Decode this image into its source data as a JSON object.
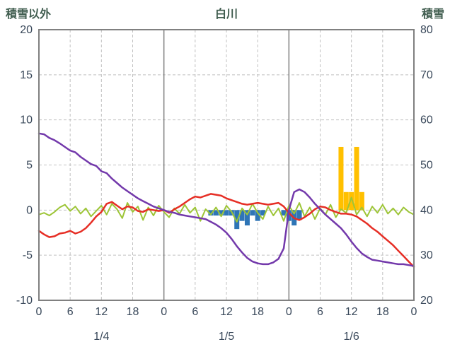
{
  "header": {
    "left_axis_title": "積雪以外",
    "chart_title": "白川",
    "right_axis_title": "積雪"
  },
  "colors": {
    "background": "#ffffff",
    "header_text": "#3f5c4e",
    "tick_text": "#39485a",
    "grid": "#c0c0c0",
    "axis_border": "#808080",
    "day_boundary": "#808080",
    "red_line": "#e62e25",
    "purple_line": "#7339ab",
    "green_line": "#9dc537",
    "blue_bars": "#2e75b6",
    "yellow_bars": "#ffc000"
  },
  "chart_data": {
    "type": "line",
    "title": "白川",
    "x_max": 72,
    "left_axis": {
      "label": "積雪以外",
      "min": -10,
      "max": 20,
      "ticks": [
        [
          20,
          "20"
        ],
        [
          15,
          "15"
        ],
        [
          10,
          "10"
        ],
        [
          5,
          "5"
        ],
        [
          0,
          "0"
        ],
        [
          -5,
          "-5"
        ],
        [
          -10,
          "-10"
        ]
      ]
    },
    "right_axis": {
      "label": "積雪",
      "min": 20,
      "max": 80,
      "ticks": [
        [
          80,
          "80"
        ],
        [
          70,
          "70"
        ],
        [
          60,
          "60"
        ],
        [
          50,
          "50"
        ],
        [
          40,
          "40"
        ],
        [
          30,
          "30"
        ],
        [
          20,
          "20"
        ]
      ]
    },
    "x_axis": {
      "ticks": [
        [
          0,
          "0"
        ],
        [
          6,
          "6"
        ],
        [
          12,
          "12"
        ],
        [
          18,
          "18"
        ],
        [
          24,
          "0"
        ],
        [
          30,
          "6"
        ],
        [
          36,
          "12"
        ],
        [
          42,
          "18"
        ],
        [
          48,
          "0"
        ],
        [
          54,
          "6"
        ],
        [
          60,
          "12"
        ],
        [
          66,
          "18"
        ],
        [
          72,
          "0"
        ]
      ],
      "day_labels": [
        [
          12,
          "1/4"
        ],
        [
          36,
          "1/5"
        ],
        [
          60,
          "1/6"
        ]
      ],
      "day_boundaries": [
        24,
        48
      ],
      "grid_interval_hours": 6
    },
    "series": [
      {
        "name": "blue-bars",
        "type": "bar",
        "axis": "left",
        "color_key": "blue_bars",
        "points": [
          [
            33,
            -0.6
          ],
          [
            34,
            -0.6
          ],
          [
            35,
            -0.6
          ],
          [
            36,
            -0.6
          ],
          [
            37,
            -0.6
          ],
          [
            38,
            -2.1
          ],
          [
            39,
            -1.2
          ],
          [
            40,
            -1.7
          ],
          [
            41,
            -0.6
          ],
          [
            42,
            -1.2
          ],
          [
            43,
            -0.6
          ],
          [
            47,
            -0.6
          ],
          [
            48,
            -1.2
          ],
          [
            49,
            -1.7
          ],
          [
            50,
            -1.1
          ]
        ]
      },
      {
        "name": "yellow-bars",
        "type": "bar",
        "axis": "left",
        "color_key": "yellow_bars",
        "points": [
          [
            58,
            7
          ],
          [
            59,
            2
          ],
          [
            60,
            2
          ],
          [
            61,
            7
          ],
          [
            62,
            2
          ]
        ]
      },
      {
        "name": "green-line",
        "type": "line",
        "axis": "left",
        "color_key": "green_line",
        "width": 2,
        "points": [
          [
            0,
            -0.5
          ],
          [
            1,
            -0.3
          ],
          [
            2,
            -0.6
          ],
          [
            3,
            -0.2
          ],
          [
            4,
            0.3
          ],
          [
            5,
            0.6
          ],
          [
            6,
            -0.1
          ],
          [
            7,
            0.4
          ],
          [
            8,
            -0.4
          ],
          [
            9,
            0.2
          ],
          [
            10,
            -0.7
          ],
          [
            11,
            -0.1
          ],
          [
            12,
            0.5
          ],
          [
            13,
            -0.5
          ],
          [
            14,
            0.7
          ],
          [
            15,
            0.1
          ],
          [
            16,
            -0.9
          ],
          [
            17,
            0.8
          ],
          [
            18,
            -0.2
          ],
          [
            19,
            0.4
          ],
          [
            20,
            -1.1
          ],
          [
            21,
            0.3
          ],
          [
            22,
            -0.6
          ],
          [
            23,
            0.5
          ],
          [
            24,
            -0.2
          ],
          [
            25,
            -0.8
          ],
          [
            26,
            0.2
          ],
          [
            27,
            -0.4
          ],
          [
            28,
            0.6
          ],
          [
            29,
            -0.3
          ],
          [
            30,
            0.3
          ],
          [
            31,
            -1.2
          ],
          [
            32,
            0.1
          ],
          [
            33,
            -0.5
          ],
          [
            34,
            0.3
          ],
          [
            35,
            -0.7
          ],
          [
            36,
            0.5
          ],
          [
            37,
            -0.2
          ],
          [
            38,
            -1.3
          ],
          [
            39,
            0.2
          ],
          [
            40,
            -0.5
          ],
          [
            41,
            0.7
          ],
          [
            42,
            -0.3
          ],
          [
            43,
            -1.0
          ],
          [
            44,
            0.4
          ],
          [
            45,
            -0.6
          ],
          [
            46,
            0.2
          ],
          [
            47,
            -1.2
          ],
          [
            48,
            0.5
          ],
          [
            49,
            -0.4
          ],
          [
            50,
            0.8
          ],
          [
            51,
            -0.7
          ],
          [
            52,
            0.3
          ],
          [
            53,
            -1.0
          ],
          [
            54,
            0.2
          ],
          [
            55,
            -0.5
          ],
          [
            56,
            0.6
          ],
          [
            57,
            -0.8
          ],
          [
            58,
            0.1
          ],
          [
            59,
            -0.3
          ],
          [
            60,
            1.4
          ],
          [
            61,
            -0.5
          ],
          [
            62,
            0.3
          ],
          [
            63,
            -0.7
          ],
          [
            64,
            0.4
          ],
          [
            65,
            -0.3
          ],
          [
            66,
            0.6
          ],
          [
            67,
            -0.4
          ],
          [
            68,
            0.2
          ],
          [
            69,
            -0.5
          ],
          [
            70,
            0.3
          ],
          [
            71,
            -0.2
          ],
          [
            72,
            -0.5
          ]
        ]
      },
      {
        "name": "red-line",
        "type": "line",
        "axis": "left",
        "color_key": "red_line",
        "width": 2.5,
        "points": [
          [
            0,
            -2.3
          ],
          [
            1,
            -2.7
          ],
          [
            2,
            -3.0
          ],
          [
            3,
            -2.9
          ],
          [
            4,
            -2.6
          ],
          [
            5,
            -2.5
          ],
          [
            6,
            -2.3
          ],
          [
            7,
            -2.6
          ],
          [
            8,
            -2.4
          ],
          [
            9,
            -2.0
          ],
          [
            10,
            -1.4
          ],
          [
            11,
            -0.7
          ],
          [
            12,
            -0.2
          ],
          [
            13,
            0.7
          ],
          [
            14,
            0.9
          ],
          [
            15,
            0.5
          ],
          [
            16,
            0.1
          ],
          [
            17,
            0.4
          ],
          [
            18,
            0.3
          ],
          [
            19,
            -0.1
          ],
          [
            20,
            -0.2
          ],
          [
            21,
            0.1
          ],
          [
            22,
            0.0
          ],
          [
            23,
            -0.1
          ],
          [
            24,
            0.0
          ],
          [
            25,
            -0.3
          ],
          [
            26,
            0.1
          ],
          [
            27,
            0.4
          ],
          [
            28,
            0.8
          ],
          [
            29,
            1.2
          ],
          [
            30,
            1.5
          ],
          [
            31,
            1.4
          ],
          [
            32,
            1.6
          ],
          [
            33,
            1.8
          ],
          [
            34,
            1.7
          ],
          [
            35,
            1.6
          ],
          [
            36,
            1.3
          ],
          [
            37,
            1.1
          ],
          [
            38,
            0.9
          ],
          [
            39,
            0.7
          ],
          [
            40,
            0.6
          ],
          [
            41,
            0.7
          ],
          [
            42,
            0.8
          ],
          [
            43,
            0.7
          ],
          [
            44,
            0.6
          ],
          [
            45,
            0.7
          ],
          [
            46,
            0.8
          ],
          [
            47,
            0.4
          ],
          [
            48,
            -0.3
          ],
          [
            49,
            -0.9
          ],
          [
            50,
            -1.1
          ],
          [
            51,
            -0.8
          ],
          [
            52,
            -0.4
          ],
          [
            53,
            0.1
          ],
          [
            54,
            0.4
          ],
          [
            55,
            0.3
          ],
          [
            56,
            0.0
          ],
          [
            57,
            -0.2
          ],
          [
            58,
            -0.4
          ],
          [
            59,
            -0.4
          ],
          [
            60,
            -0.5
          ],
          [
            61,
            -0.7
          ],
          [
            62,
            -1.1
          ],
          [
            63,
            -1.5
          ],
          [
            64,
            -2.0
          ],
          [
            65,
            -2.4
          ],
          [
            66,
            -2.9
          ],
          [
            67,
            -3.4
          ],
          [
            68,
            -3.9
          ],
          [
            69,
            -4.5
          ],
          [
            70,
            -5.1
          ],
          [
            71,
            -5.7
          ],
          [
            72,
            -6.3
          ]
        ]
      },
      {
        "name": "purple-line",
        "type": "line",
        "axis": "right",
        "color_key": "purple_line",
        "width": 2.5,
        "points": [
          [
            0,
            57
          ],
          [
            1,
            56.8
          ],
          [
            2,
            56
          ],
          [
            3,
            55.5
          ],
          [
            4,
            54.8
          ],
          [
            5,
            54
          ],
          [
            6,
            53.2
          ],
          [
            7,
            52.8
          ],
          [
            8,
            51.8
          ],
          [
            9,
            51
          ],
          [
            10,
            50.2
          ],
          [
            11,
            49.8
          ],
          [
            12,
            48.6
          ],
          [
            13,
            48.2
          ],
          [
            14,
            47
          ],
          [
            15,
            46
          ],
          [
            16,
            45
          ],
          [
            17,
            44.2
          ],
          [
            18,
            43.4
          ],
          [
            19,
            42.6
          ],
          [
            20,
            42
          ],
          [
            21,
            41.4
          ],
          [
            22,
            40.8
          ],
          [
            23,
            40.4
          ],
          [
            24,
            40
          ],
          [
            25,
            39.6
          ],
          [
            26,
            39.4
          ],
          [
            27,
            39
          ],
          [
            28,
            38.8
          ],
          [
            29,
            38.6
          ],
          [
            30,
            38.4
          ],
          [
            31,
            38.2
          ],
          [
            32,
            38
          ],
          [
            33,
            37.4
          ],
          [
            34,
            36.8
          ],
          [
            35,
            36
          ],
          [
            36,
            35
          ],
          [
            37,
            33.6
          ],
          [
            38,
            32
          ],
          [
            39,
            30.6
          ],
          [
            40,
            29.4
          ],
          [
            41,
            28.6
          ],
          [
            42,
            28.2
          ],
          [
            43,
            28
          ],
          [
            44,
            28
          ],
          [
            45,
            28.4
          ],
          [
            46,
            29.2
          ],
          [
            47,
            31.5
          ],
          [
            48,
            40
          ],
          [
            49,
            44
          ],
          [
            50,
            44.6
          ],
          [
            51,
            44
          ],
          [
            52,
            42.8
          ],
          [
            53,
            41.4
          ],
          [
            54,
            40.2
          ],
          [
            55,
            39
          ],
          [
            56,
            38
          ],
          [
            57,
            37
          ],
          [
            58,
            36
          ],
          [
            59,
            34.6
          ],
          [
            60,
            33
          ],
          [
            61,
            31.6
          ],
          [
            62,
            30.4
          ],
          [
            63,
            29.6
          ],
          [
            64,
            29
          ],
          [
            65,
            28.8
          ],
          [
            66,
            28.6
          ],
          [
            67,
            28.4
          ],
          [
            68,
            28.2
          ],
          [
            69,
            28
          ],
          [
            70,
            28
          ],
          [
            71,
            27.8
          ],
          [
            72,
            27.6
          ]
        ]
      }
    ]
  }
}
